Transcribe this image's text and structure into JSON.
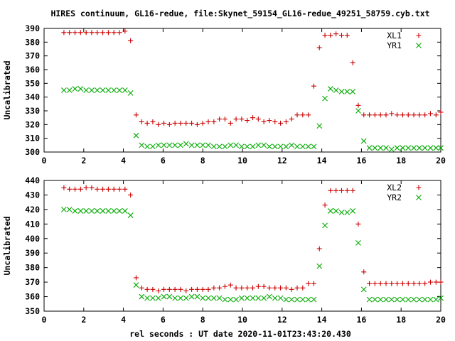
{
  "chart_data": [
    {
      "type": "scatter",
      "title": "HIRES continuum, GL16-redue, file:Skynet_59154_GL16-redue_49251_58759.cyb.txt",
      "ylabel": "Uncalibrated",
      "xlabel": "",
      "xlim": [
        0,
        20
      ],
      "ylim": [
        300,
        390
      ],
      "xticks": [
        0,
        2,
        4,
        6,
        8,
        10,
        12,
        14,
        16,
        18,
        20
      ],
      "yticks": [
        300,
        310,
        320,
        330,
        340,
        350,
        360,
        370,
        380,
        390
      ],
      "legend_position": "top-right",
      "series": [
        {
          "name": "XL1",
          "color": "#cc0000",
          "marker": "plus",
          "x": [
            1.0,
            1.28,
            1.56,
            1.84,
            2.12,
            2.4,
            2.68,
            2.96,
            3.24,
            3.52,
            3.8,
            4.08,
            4.36,
            4.64,
            4.92,
            5.2,
            5.48,
            5.76,
            6.04,
            6.32,
            6.6,
            6.88,
            7.16,
            7.44,
            7.72,
            8.0,
            8.28,
            8.56,
            8.84,
            9.12,
            9.4,
            9.68,
            9.96,
            10.24,
            10.52,
            10.8,
            11.08,
            11.36,
            11.64,
            11.92,
            12.2,
            12.48,
            12.76,
            13.04,
            13.32,
            13.6,
            13.88,
            14.16,
            14.44,
            14.72,
            15.0,
            15.28,
            15.56,
            15.84,
            16.12,
            16.4,
            16.68,
            16.96,
            17.24,
            17.52,
            17.8,
            18.08,
            18.36,
            18.64,
            18.92,
            19.2,
            19.48,
            19.76,
            20.0
          ],
          "y": [
            387,
            387,
            387,
            387,
            387,
            387,
            387,
            387,
            387,
            387,
            387,
            388,
            381,
            327,
            322,
            321,
            322,
            320,
            321,
            320,
            321,
            321,
            321,
            321,
            320,
            321,
            322,
            322,
            324,
            324,
            321,
            324,
            324,
            323,
            325,
            324,
            322,
            323,
            322,
            321,
            322,
            324,
            327,
            327,
            327,
            348,
            376,
            385,
            385,
            386,
            385,
            385,
            365,
            334,
            327,
            327,
            327,
            327,
            327,
            328,
            327,
            327,
            327,
            327,
            327,
            327,
            328,
            327,
            329
          ]
        },
        {
          "name": "YR1",
          "color": "#00aa00",
          "marker": "cross",
          "x": [
            1.0,
            1.28,
            1.56,
            1.84,
            2.12,
            2.4,
            2.68,
            2.96,
            3.24,
            3.52,
            3.8,
            4.08,
            4.36,
            4.64,
            4.92,
            5.2,
            5.48,
            5.76,
            6.04,
            6.32,
            6.6,
            6.88,
            7.16,
            7.44,
            7.72,
            8.0,
            8.28,
            8.56,
            8.84,
            9.12,
            9.4,
            9.68,
            9.96,
            10.24,
            10.52,
            10.8,
            11.08,
            11.36,
            11.64,
            11.92,
            12.2,
            12.48,
            12.76,
            13.04,
            13.32,
            13.6,
            13.88,
            14.16,
            14.44,
            14.72,
            15.0,
            15.28,
            15.56,
            15.84,
            16.12,
            16.4,
            16.68,
            16.96,
            17.24,
            17.52,
            17.8,
            18.08,
            18.36,
            18.64,
            18.92,
            19.2,
            19.48,
            19.76,
            20.0
          ],
          "y": [
            345,
            345,
            346,
            346,
            345,
            345,
            345,
            345,
            345,
            345,
            345,
            345,
            343,
            312,
            305,
            304,
            304,
            305,
            305,
            305,
            305,
            305,
            306,
            305,
            305,
            305,
            305,
            304,
            304,
            304,
            305,
            305,
            304,
            304,
            304,
            305,
            305,
            304,
            304,
            304,
            304,
            305,
            304,
            304,
            304,
            304,
            319,
            339,
            346,
            345,
            344,
            344,
            344,
            330,
            308,
            303,
            303,
            303,
            303,
            302,
            303,
            303,
            303,
            303,
            303,
            303,
            303,
            303,
            303
          ]
        }
      ]
    },
    {
      "type": "scatter",
      "title": "",
      "ylabel": "Uncalibrated",
      "xlabel": "rel seconds : UT date 2020-11-01T23:43:20.430",
      "xlim": [
        0,
        20
      ],
      "ylim": [
        350,
        440
      ],
      "xticks": [
        0,
        2,
        4,
        6,
        8,
        10,
        12,
        14,
        16,
        18,
        20
      ],
      "yticks": [
        350,
        360,
        370,
        380,
        390,
        400,
        410,
        420,
        430,
        440
      ],
      "legend_position": "top-right",
      "series": [
        {
          "name": "XL2",
          "color": "#cc0000",
          "marker": "plus",
          "x": [
            1.0,
            1.28,
            1.56,
            1.84,
            2.12,
            2.4,
            2.68,
            2.96,
            3.24,
            3.52,
            3.8,
            4.08,
            4.36,
            4.64,
            4.92,
            5.2,
            5.48,
            5.76,
            6.04,
            6.32,
            6.6,
            6.88,
            7.16,
            7.44,
            7.72,
            8.0,
            8.28,
            8.56,
            8.84,
            9.12,
            9.4,
            9.68,
            9.96,
            10.24,
            10.52,
            10.8,
            11.08,
            11.36,
            11.64,
            11.92,
            12.2,
            12.48,
            12.76,
            13.04,
            13.32,
            13.6,
            13.88,
            14.16,
            14.44,
            14.72,
            15.0,
            15.28,
            15.56,
            15.84,
            16.12,
            16.4,
            16.68,
            16.96,
            17.24,
            17.52,
            17.8,
            18.08,
            18.36,
            18.64,
            18.92,
            19.2,
            19.48,
            19.76,
            20.0
          ],
          "y": [
            435,
            434,
            434,
            434,
            435,
            435,
            434,
            434,
            434,
            434,
            434,
            434,
            430,
            373,
            366,
            365,
            365,
            364,
            365,
            365,
            365,
            365,
            364,
            365,
            365,
            365,
            365,
            366,
            366,
            367,
            368,
            366,
            366,
            366,
            366,
            367,
            367,
            366,
            366,
            366,
            366,
            365,
            366,
            366,
            369,
            369,
            393,
            423,
            433,
            433,
            433,
            433,
            433,
            410,
            377,
            369,
            369,
            369,
            369,
            369,
            369,
            369,
            369,
            369,
            369,
            369,
            370,
            370,
            370
          ]
        },
        {
          "name": "YR2",
          "color": "#00aa00",
          "marker": "cross",
          "x": [
            1.0,
            1.28,
            1.56,
            1.84,
            2.12,
            2.4,
            2.68,
            2.96,
            3.24,
            3.52,
            3.8,
            4.08,
            4.36,
            4.64,
            4.92,
            5.2,
            5.48,
            5.76,
            6.04,
            6.32,
            6.6,
            6.88,
            7.16,
            7.44,
            7.72,
            8.0,
            8.28,
            8.56,
            8.84,
            9.12,
            9.4,
            9.68,
            9.96,
            10.24,
            10.52,
            10.8,
            11.08,
            11.36,
            11.64,
            11.92,
            12.2,
            12.48,
            12.76,
            13.04,
            13.32,
            13.6,
            13.88,
            14.16,
            14.44,
            14.72,
            15.0,
            15.28,
            15.56,
            15.84,
            16.12,
            16.4,
            16.68,
            16.96,
            17.24,
            17.52,
            17.8,
            18.08,
            18.36,
            18.64,
            18.92,
            19.2,
            19.48,
            19.76,
            20.0
          ],
          "y": [
            420,
            420,
            419,
            419,
            419,
            419,
            419,
            419,
            419,
            419,
            419,
            419,
            416,
            368,
            360,
            359,
            359,
            359,
            360,
            360,
            359,
            359,
            359,
            360,
            360,
            359,
            359,
            359,
            359,
            358,
            358,
            358,
            359,
            359,
            359,
            359,
            359,
            360,
            359,
            359,
            358,
            358,
            358,
            358,
            358,
            358,
            381,
            409,
            419,
            419,
            418,
            418,
            419,
            397,
            365,
            358,
            358,
            358,
            358,
            358,
            358,
            358,
            358,
            358,
            358,
            358,
            358,
            358,
            359
          ]
        }
      ]
    }
  ]
}
